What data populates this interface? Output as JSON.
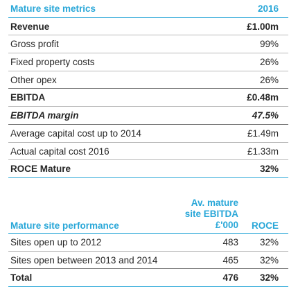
{
  "metrics": {
    "header_label": "Mature site metrics",
    "header_year": "2016",
    "rows": [
      {
        "label": "Revenue",
        "value": "£1.00m"
      },
      {
        "label": "Gross profit",
        "value": "99%"
      },
      {
        "label": "Fixed property costs",
        "value": "26%"
      },
      {
        "label": "Other opex",
        "value": "26%"
      },
      {
        "label": "EBITDA",
        "value": "£0.48m"
      },
      {
        "label": "EBITDA margin",
        "value": "47.5%"
      },
      {
        "label": "Average capital cost up to 2014",
        "value": "£1.49m"
      },
      {
        "label": "Actual capital cost 2016",
        "value": "£1.33m"
      },
      {
        "label": "ROCE Mature",
        "value": "32%"
      }
    ]
  },
  "performance": {
    "header_label": "Mature site performance",
    "col_ebitda": "Av. mature site EBITDA £'000",
    "col_roce": "ROCE",
    "rows": [
      {
        "label": "Sites open up to 2012",
        "ebitda": "483",
        "roce": "32%"
      },
      {
        "label": "Sites open between 2013 and 2014",
        "ebitda": "465",
        "roce": "32%"
      },
      {
        "label": "Total",
        "ebitda": "476",
        "roce": "32%"
      }
    ]
  }
}
